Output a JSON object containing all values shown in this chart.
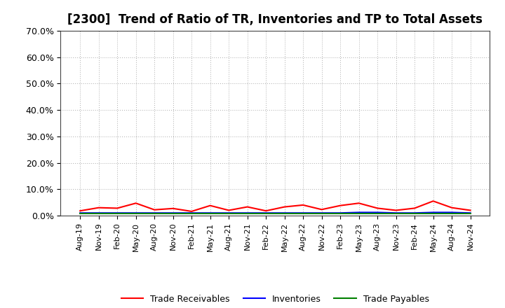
{
  "title": "[2300]  Trend of Ratio of TR, Inventories and TP to Total Assets",
  "x_labels": [
    "Aug-19",
    "Nov-19",
    "Feb-20",
    "May-20",
    "Aug-20",
    "Nov-20",
    "Feb-21",
    "May-21",
    "Aug-21",
    "Nov-21",
    "Feb-22",
    "May-22",
    "Aug-22",
    "Nov-22",
    "Feb-23",
    "May-23",
    "Aug-23",
    "Nov-23",
    "Feb-24",
    "May-24",
    "Aug-24",
    "Nov-24"
  ],
  "trade_receivables": [
    0.018,
    0.03,
    0.028,
    0.047,
    0.022,
    0.027,
    0.016,
    0.038,
    0.02,
    0.033,
    0.018,
    0.033,
    0.04,
    0.023,
    0.038,
    0.047,
    0.028,
    0.02,
    0.028,
    0.055,
    0.03,
    0.02
  ],
  "inventories": [
    0.01,
    0.01,
    0.01,
    0.01,
    0.01,
    0.01,
    0.01,
    0.01,
    0.01,
    0.01,
    0.01,
    0.01,
    0.01,
    0.01,
    0.01,
    0.012,
    0.012,
    0.01,
    0.01,
    0.012,
    0.012,
    0.01
  ],
  "trade_payables": [
    0.007,
    0.007,
    0.007,
    0.007,
    0.007,
    0.007,
    0.007,
    0.007,
    0.007,
    0.007,
    0.007,
    0.007,
    0.007,
    0.007,
    0.007,
    0.007,
    0.007,
    0.007,
    0.007,
    0.007,
    0.007,
    0.007
  ],
  "tr_color": "#ff0000",
  "inv_color": "#0000ff",
  "tp_color": "#008000",
  "ylim": [
    0.0,
    0.7
  ],
  "yticks": [
    0.0,
    0.1,
    0.2,
    0.3,
    0.4,
    0.5,
    0.6,
    0.7
  ],
  "ytick_labels": [
    "0.0%",
    "10.0%",
    "20.0%",
    "30.0%",
    "40.0%",
    "50.0%",
    "60.0%",
    "70.0%"
  ],
  "legend_labels": [
    "Trade Receivables",
    "Inventories",
    "Trade Payables"
  ],
  "bg_color": "#ffffff",
  "plot_bg_color": "#ffffff",
  "grid_color": "#aaaaaa",
  "title_fontsize": 12,
  "tick_fontsize": 9,
  "legend_fontsize": 9
}
